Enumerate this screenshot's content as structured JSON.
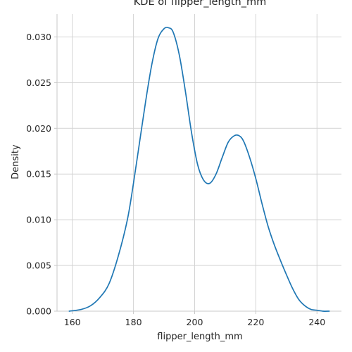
{
  "chart_data": {
    "type": "line",
    "title": "KDE of flipper_length_mm",
    "xlabel": "flipper_length_mm",
    "ylabel": "Density",
    "xlim": [
      155,
      248
    ],
    "ylim": [
      0,
      0.0325
    ],
    "grid": true,
    "x_ticks": [
      160,
      180,
      200,
      220,
      240
    ],
    "y_ticks": [
      0.0,
      0.005,
      0.01,
      0.015,
      0.02,
      0.025,
      0.03
    ],
    "x_tick_labels": [
      "160",
      "180",
      "200",
      "220",
      "240"
    ],
    "y_tick_labels": [
      "0.000",
      "0.005",
      "0.010",
      "0.015",
      "0.020",
      "0.025",
      "0.030"
    ],
    "colors": {
      "line": "#1f77b4",
      "grid": "#d3d3d3",
      "spine": "#c8c8c8"
    },
    "series": [
      {
        "x": [
          159,
          163,
          166,
          169,
          172,
          175,
          178,
          180,
          182,
          184,
          186,
          188,
          190,
          191.5,
          193,
          195,
          197,
          199,
          201,
          203,
          205,
          207,
          209,
          211,
          213,
          214.5,
          216,
          218,
          220,
          222,
          224,
          226,
          228,
          230,
          232,
          234,
          236,
          238,
          240,
          242,
          244
        ],
        "y": [
          0.0,
          0.0002,
          0.0006,
          0.0015,
          0.003,
          0.006,
          0.01,
          0.014,
          0.0185,
          0.023,
          0.027,
          0.0298,
          0.0309,
          0.031,
          0.0305,
          0.028,
          0.024,
          0.0195,
          0.016,
          0.0143,
          0.014,
          0.015,
          0.0168,
          0.0185,
          0.0192,
          0.0192,
          0.0186,
          0.0168,
          0.0145,
          0.0118,
          0.0093,
          0.0073,
          0.0056,
          0.004,
          0.0025,
          0.0013,
          0.0006,
          0.0002,
          0.0001,
          0.0,
          0.0
        ]
      }
    ]
  }
}
